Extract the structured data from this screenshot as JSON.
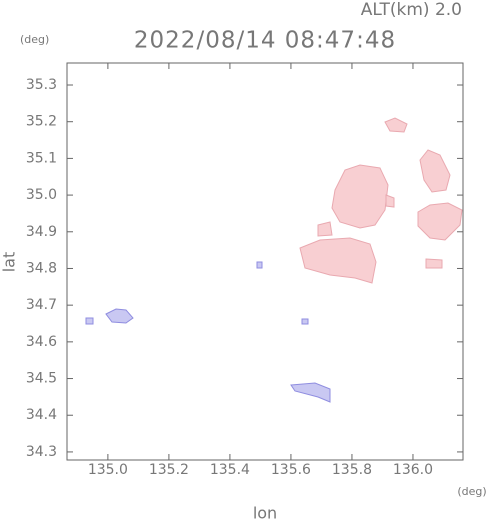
{
  "altitude": "ALT(km) 2.0",
  "chart_data": {
    "type": "map",
    "title": "2022/08/14 08:47:48",
    "x_label": "lon",
    "y_label": "lat",
    "x_unit": "(deg)",
    "y_unit": "(deg)",
    "xlim": [
      134.866,
      136.164
    ],
    "ylim": [
      34.278,
      35.36
    ],
    "xticks": [
      {
        "value": 135,
        "label": "135.0"
      },
      135.2,
      135.4,
      135.6,
      135.8,
      {
        "value": 136,
        "label": "136.0"
      }
    ],
    "yticks": [
      34.3,
      34.4,
      34.5,
      34.6,
      34.7,
      34.8,
      34.9,
      {
        "value": 35,
        "label": "35.0"
      },
      35.1,
      35.2,
      35.3
    ]
  }
}
